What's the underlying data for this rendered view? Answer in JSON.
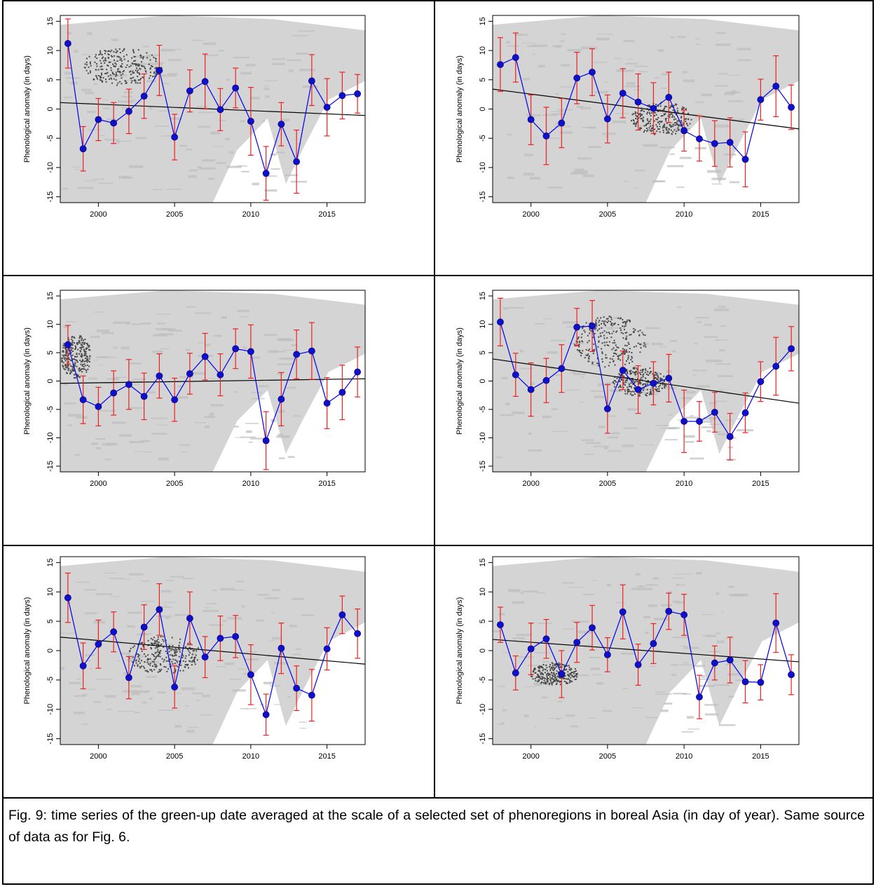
{
  "caption": "Fig. 9: time series of the green-up date averaged at the scale of a selected set of phenoregions in boreal Asia (in day of year). Same source of data as for Fig. 6.",
  "colors": {
    "series_line": "#0000ee",
    "series_point": "#1010cc",
    "error_bar": "#ee2020",
    "trend_line": "#000000",
    "map_land": "#d4d4d4",
    "map_region": "#4a4a4a"
  },
  "chart_data": [
    {
      "type": "line",
      "title": "",
      "xlabel": "",
      "ylabel": "Phenological anomaly (in days)",
      "xlim": [
        1997.5,
        2017.5
      ],
      "ylim": [
        -15,
        15
      ],
      "x_ticks": [
        2000,
        2005,
        2010,
        2015
      ],
      "y_ticks": [
        -15,
        -10,
        -5,
        0,
        5,
        10,
        15
      ],
      "grid": false,
      "background": "map of boreal Asia with highlighted phenoregion",
      "x": [
        1998,
        1999,
        2000,
        2001,
        2002,
        2003,
        2004,
        2005,
        2006,
        2007,
        2008,
        2009,
        2010,
        2011,
        2012,
        2013,
        2014,
        2015,
        2016,
        2017
      ],
      "values": [
        11.2,
        -6.8,
        -1.8,
        -2.4,
        -0.4,
        2.2,
        6.6,
        -4.8,
        3.1,
        4.7,
        -0.1,
        3.6,
        -2.1,
        -11.0,
        -2.6,
        -9.0,
        4.8,
        0.3,
        2.3,
        2.6
      ],
      "error_low": [
        7.0,
        -10.6,
        -5.4,
        -5.9,
        -4.2,
        -1.6,
        2.3,
        -8.7,
        -0.5,
        0.0,
        -3.7,
        0.2,
        -7.9,
        -15.6,
        -6.3,
        -14.4,
        0.6,
        -4.6,
        -1.7,
        -0.7
      ],
      "error_high": [
        15.4,
        -3.0,
        1.8,
        1.1,
        3.4,
        6.0,
        10.9,
        -0.9,
        6.7,
        9.4,
        3.5,
        7.0,
        3.7,
        -6.4,
        1.1,
        -3.6,
        9.3,
        5.2,
        6.3,
        5.9
      ],
      "trend": [
        1.1,
        -1.1
      ]
    },
    {
      "type": "line",
      "title": "",
      "xlabel": "",
      "ylabel": "Phenological anomaly (in days)",
      "xlim": [
        1997.5,
        2017.5
      ],
      "ylim": [
        -15,
        15
      ],
      "x_ticks": [
        2000,
        2005,
        2010,
        2015
      ],
      "y_ticks": [
        -15,
        -10,
        -5,
        0,
        5,
        10,
        15
      ],
      "grid": false,
      "background": "map of boreal Asia with highlighted phenoregion",
      "x": [
        1998,
        1999,
        2000,
        2001,
        2002,
        2003,
        2004,
        2005,
        2006,
        2007,
        2008,
        2009,
        2010,
        2011,
        2012,
        2013,
        2014,
        2015,
        2016,
        2017
      ],
      "values": [
        7.6,
        8.8,
        -1.8,
        -4.6,
        -2.4,
        5.3,
        6.3,
        -1.7,
        2.7,
        1.2,
        0.1,
        2.0,
        -3.7,
        -5.1,
        -5.9,
        -5.7,
        -8.6,
        1.6,
        3.9,
        0.3
      ],
      "error_low": [
        3.0,
        4.6,
        -6.1,
        -9.5,
        -6.6,
        0.9,
        2.3,
        -5.8,
        -1.5,
        -3.6,
        -4.2,
        -2.3,
        -7.2,
        -8.9,
        -9.8,
        -9.9,
        -13.3,
        -1.9,
        -1.3,
        -3.5
      ],
      "error_high": [
        12.2,
        13.0,
        2.4,
        0.3,
        1.8,
        9.7,
        10.3,
        2.4,
        6.9,
        6.0,
        4.5,
        6.3,
        -0.2,
        -1.2,
        -2.0,
        -1.5,
        -3.9,
        5.1,
        9.1,
        4.1
      ],
      "trend": [
        3.4,
        -3.4
      ]
    },
    {
      "type": "line",
      "title": "",
      "xlabel": "",
      "ylabel": "Phenological anomaly (in days)",
      "xlim": [
        1997.5,
        2017.5
      ],
      "ylim": [
        -15,
        15
      ],
      "x_ticks": [
        2000,
        2005,
        2010,
        2015
      ],
      "y_ticks": [
        -15,
        -10,
        -5,
        0,
        5,
        10,
        15
      ],
      "grid": false,
      "background": "map of boreal Asia with highlighted phenoregion",
      "x": [
        1998,
        1999,
        2000,
        2001,
        2002,
        2003,
        2004,
        2005,
        2006,
        2007,
        2008,
        2009,
        2010,
        2011,
        2012,
        2013,
        2014,
        2015,
        2016,
        2017
      ],
      "values": [
        6.4,
        -3.3,
        -4.5,
        -2.1,
        -0.6,
        -2.7,
        0.9,
        -3.3,
        1.3,
        4.3,
        1.1,
        5.7,
        5.2,
        -10.5,
        -3.2,
        4.7,
        5.3,
        -3.9,
        -2.0,
        1.6
      ],
      "error_low": [
        3.0,
        -7.5,
        -7.9,
        -6.0,
        -5.0,
        -6.8,
        -3.0,
        -7.1,
        -2.3,
        0.2,
        -2.6,
        2.2,
        0.5,
        -15.6,
        -7.9,
        0.4,
        0.3,
        -8.4,
        -6.8,
        -2.8
      ],
      "error_high": [
        9.8,
        0.9,
        -1.1,
        1.8,
        3.8,
        1.4,
        4.8,
        0.5,
        4.9,
        8.4,
        4.8,
        9.2,
        9.9,
        -5.4,
        1.5,
        9.0,
        10.3,
        0.6,
        2.8,
        6.0
      ],
      "trend": [
        -0.4,
        0.4
      ]
    },
    {
      "type": "line",
      "title": "",
      "xlabel": "",
      "ylabel": "Phenological anomaly (in days)",
      "xlim": [
        1997.5,
        2017.5
      ],
      "ylim": [
        -15,
        15
      ],
      "x_ticks": [
        2000,
        2005,
        2010,
        2015
      ],
      "y_ticks": [
        -15,
        -10,
        -5,
        0,
        5,
        10,
        15
      ],
      "grid": false,
      "background": "map of boreal Asia with highlighted phenoregion",
      "x": [
        1998,
        1999,
        2000,
        2001,
        2002,
        2003,
        2004,
        2005,
        2006,
        2007,
        2008,
        2009,
        2010,
        2011,
        2012,
        2013,
        2014,
        2015,
        2016,
        2017
      ],
      "values": [
        10.4,
        1.1,
        -1.5,
        0.1,
        2.2,
        9.5,
        9.7,
        -4.9,
        1.9,
        -1.5,
        -0.4,
        0.5,
        -7.1,
        -7.1,
        -5.5,
        -9.8,
        -5.6,
        -0.1,
        2.6,
        5.7
      ],
      "error_low": [
        6.2,
        -2.7,
        -6.2,
        -3.8,
        -2.0,
        6.2,
        5.2,
        -9.2,
        -1.5,
        -5.7,
        -4.2,
        -3.7,
        -12.6,
        -10.6,
        -9.0,
        -13.9,
        -9.1,
        -3.6,
        -2.5,
        1.8
      ],
      "error_high": [
        14.6,
        4.9,
        3.2,
        4.0,
        6.4,
        12.8,
        14.2,
        -0.6,
        5.3,
        2.7,
        3.4,
        4.7,
        -1.6,
        -3.6,
        -2.0,
        -5.7,
        -2.1,
        3.4,
        7.7,
        9.6
      ],
      "trend": [
        3.9,
        -3.9
      ]
    },
    {
      "type": "line",
      "title": "",
      "xlabel": "",
      "ylabel": "Phenological anomaly (in days)",
      "xlim": [
        1997.5,
        2017.5
      ],
      "ylim": [
        -15,
        15
      ],
      "x_ticks": [
        2000,
        2005,
        2010,
        2015
      ],
      "y_ticks": [
        -15,
        -10,
        -5,
        0,
        5,
        10,
        15
      ],
      "grid": false,
      "background": "map of boreal Asia with highlighted phenoregion",
      "x": [
        1998,
        1999,
        2000,
        2001,
        2002,
        2003,
        2004,
        2005,
        2006,
        2007,
        2008,
        2009,
        2010,
        2011,
        2012,
        2013,
        2014,
        2015,
        2016,
        2017
      ],
      "values": [
        9.0,
        -2.6,
        1.1,
        3.2,
        -4.6,
        4.0,
        7.0,
        -6.2,
        5.5,
        -1.1,
        2.1,
        2.4,
        -4.1,
        -10.9,
        0.4,
        -6.4,
        -7.6,
        0.3,
        6.1,
        2.9
      ],
      "error_low": [
        4.8,
        -6.5,
        -3.0,
        -0.2,
        -8.2,
        0.2,
        2.6,
        -9.8,
        1.0,
        -4.6,
        -1.7,
        -1.2,
        -9.2,
        -14.4,
        -3.9,
        -10.2,
        -12.0,
        -3.3,
        2.9,
        -1.3
      ],
      "error_high": [
        13.2,
        1.3,
        5.2,
        6.6,
        -1.0,
        7.8,
        11.4,
        -2.6,
        10.0,
        2.4,
        5.9,
        6.0,
        1.0,
        -7.4,
        4.7,
        -2.6,
        -3.2,
        3.9,
        9.3,
        7.1
      ],
      "trend": [
        2.3,
        -2.3
      ]
    },
    {
      "type": "line",
      "title": "",
      "xlabel": "",
      "ylabel": "Phenological anomaly (in days)",
      "xlim": [
        1997.5,
        2017.5
      ],
      "ylim": [
        -15,
        15
      ],
      "x_ticks": [
        2000,
        2005,
        2010,
        2015
      ],
      "y_ticks": [
        -15,
        -10,
        -5,
        0,
        5,
        10,
        15
      ],
      "grid": false,
      "background": "map of boreal Asia with highlighted phenoregion",
      "x": [
        1998,
        1999,
        2000,
        2001,
        2002,
        2003,
        2004,
        2005,
        2006,
        2007,
        2008,
        2009,
        2010,
        2011,
        2012,
        2013,
        2014,
        2015,
        2016,
        2017
      ],
      "values": [
        4.4,
        -3.8,
        0.3,
        2.0,
        -4.0,
        1.4,
        3.9,
        -0.7,
        6.6,
        -2.4,
        1.2,
        6.7,
        6.1,
        -7.9,
        -2.1,
        -1.6,
        -5.3,
        -5.4,
        4.7,
        -4.1
      ],
      "error_low": [
        1.4,
        -6.7,
        -4.1,
        -1.3,
        -8.0,
        -2.0,
        0.1,
        -3.6,
        2.0,
        -5.9,
        -2.2,
        3.6,
        2.6,
        -11.6,
        -5.0,
        -5.5,
        -8.9,
        -8.4,
        -0.3,
        -7.5
      ],
      "error_high": [
        7.4,
        -0.9,
        4.7,
        5.3,
        0.0,
        4.8,
        7.7,
        2.2,
        11.2,
        1.1,
        4.6,
        9.8,
        9.6,
        -4.2,
        0.8,
        2.3,
        -1.7,
        -2.4,
        9.7,
        -0.7
      ],
      "trend": [
        1.9,
        -1.9
      ]
    }
  ]
}
